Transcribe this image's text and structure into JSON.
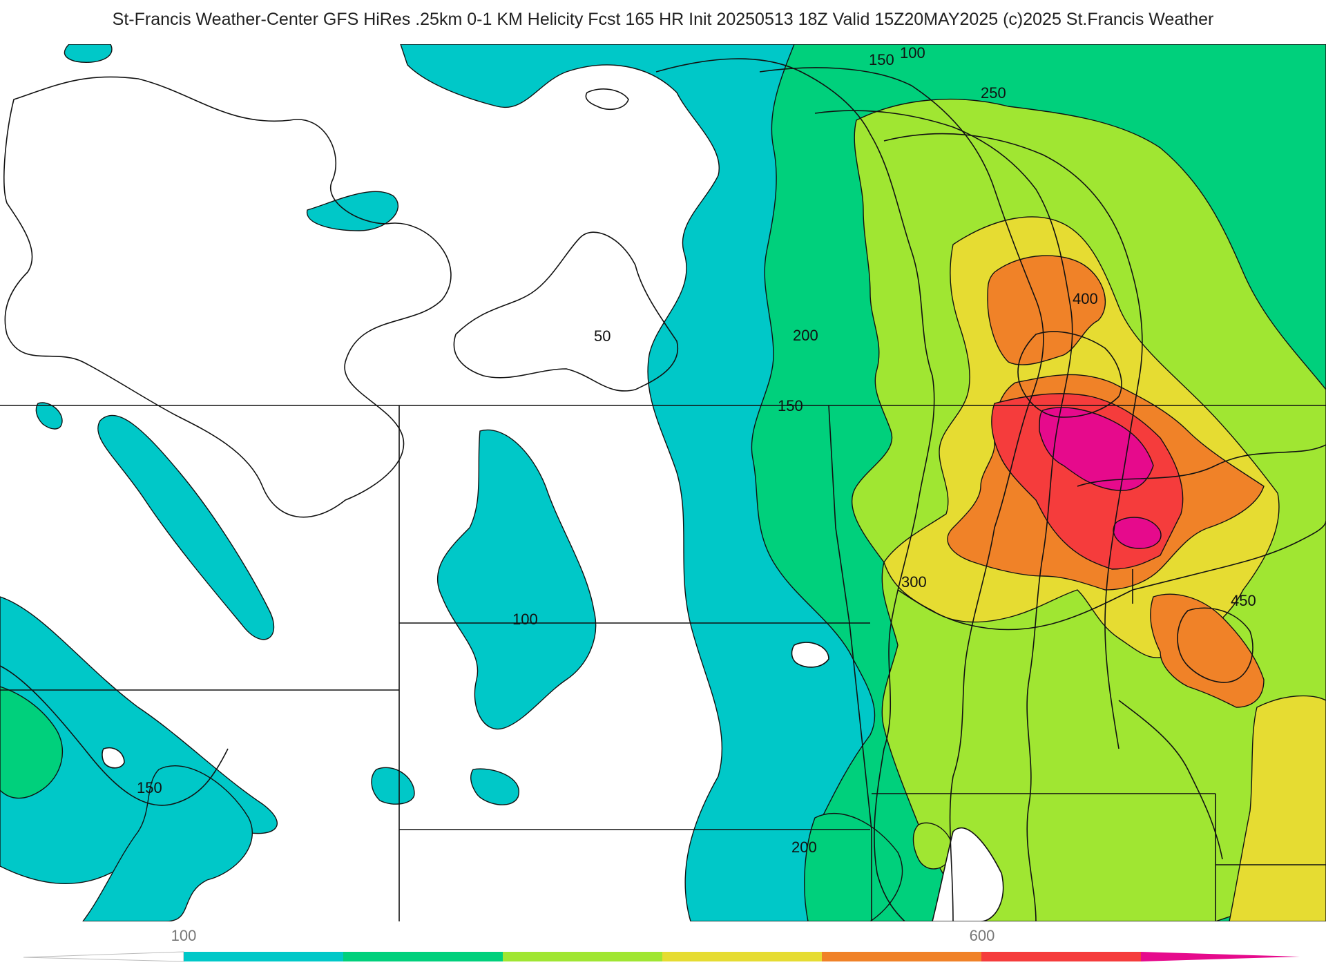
{
  "title": "St-Francis Weather-Center GFS HiRes .25km 0-1 KM Helicity Fcst 165 HR Init 20250513 18Z  Valid 15Z20MAY2025    (c)2025 St.Francis Weather",
  "colors": {
    "c100": "#00c8c8",
    "c150": "#00d07c",
    "c200": "#a0e632",
    "c250": "#e6dc32",
    "c300": "#f08228",
    "c350": "#f53c3c",
    "c400": "#e60a8c",
    "border": "#111111",
    "county": "#c8c8c8"
  },
  "map": {
    "contour_labels": [
      "100",
      "150",
      "250",
      "400",
      "50",
      "200",
      "150",
      "300",
      "450",
      "100",
      "150",
      "200"
    ]
  },
  "legend": {
    "tick_labels": [
      "100",
      "600"
    ],
    "colors": [
      "#00c8c8",
      "#00d07c",
      "#a0e632",
      "#e6dc32",
      "#f08228",
      "#f53c3c",
      "#e60a8c"
    ]
  }
}
